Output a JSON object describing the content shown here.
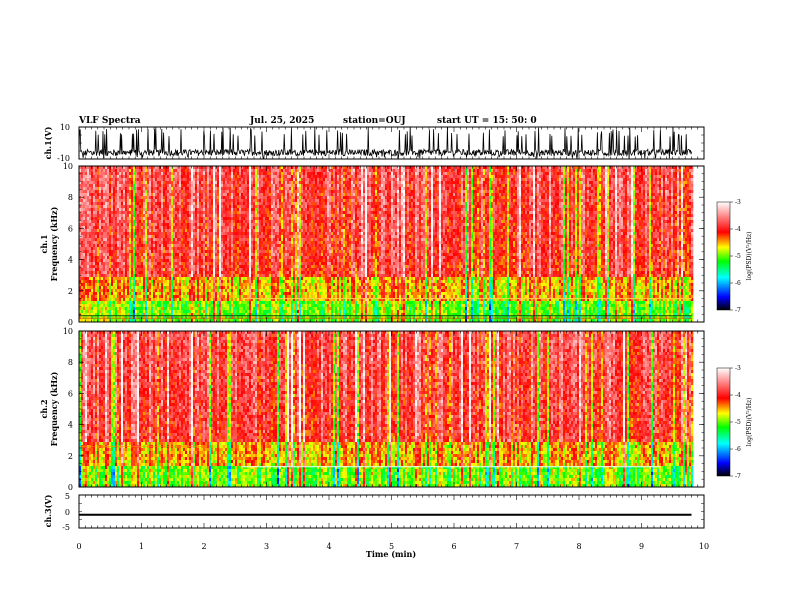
{
  "header": {
    "title": "VLF Spectra",
    "date": "Jul. 25, 2025",
    "station": "station=OUJ",
    "start": "start UT =  15: 50: 0"
  },
  "chart_data": [
    {
      "type": "line",
      "panel": "ch.1 waveform",
      "ylabel": "ch.1(V)",
      "ylim": [
        -10,
        10
      ],
      "yticks": [
        "10",
        "-10"
      ],
      "description_values": {
        "baseline": -6,
        "spike_max": 10,
        "spike_min": -10
      }
    },
    {
      "type": "heatmap",
      "panel": "ch.1 spectrogram",
      "ylabel_top": "ch.1",
      "ylabel": "Frequency (kHz)",
      "ylim": [
        0,
        10
      ],
      "yticks": [
        "0",
        "2",
        "4",
        "6",
        "8",
        "10"
      ],
      "xlim": [
        0,
        10
      ],
      "colorbar": {
        "label": "log(PSD)(V²/Hz)",
        "range": [
          -7,
          -3
        ],
        "ticks": [
          "-3",
          "-4",
          "-5",
          "-6",
          "-7"
        ]
      }
    },
    {
      "type": "heatmap",
      "panel": "ch.2 spectrogram",
      "ylabel_top": "ch.2",
      "ylabel": "Frequency (kHz)",
      "ylim": [
        0,
        10
      ],
      "yticks": [
        "0",
        "2",
        "4",
        "6",
        "8",
        "10"
      ],
      "xlim": [
        0,
        10
      ],
      "colorbar": {
        "label": "log(PSD)(V²/Hz)",
        "range": [
          -7,
          -3
        ],
        "ticks": [
          "-3",
          "-4",
          "-5",
          "-6",
          "-7"
        ]
      }
    },
    {
      "type": "line",
      "panel": "ch.3 waveform",
      "ylabel": "ch.3(V)",
      "ylim": [
        -5,
        5
      ],
      "yticks": [
        "5",
        "0",
        "-5"
      ],
      "series": [
        {
          "x": [
            0,
            9.8
          ],
          "y": [
            -1,
            -1
          ]
        }
      ]
    }
  ],
  "xaxis": {
    "label": "Time (min)",
    "ticks": [
      "0",
      "1",
      "2",
      "3",
      "4",
      "5",
      "6",
      "7",
      "8",
      "9",
      "10"
    ],
    "xlim": [
      0,
      10
    ]
  },
  "colors": {
    "colormap": [
      "#000000",
      "#0000ff",
      "#00ffff",
      "#00ff00",
      "#ffff00",
      "#ff0000",
      "#ffffff"
    ]
  }
}
